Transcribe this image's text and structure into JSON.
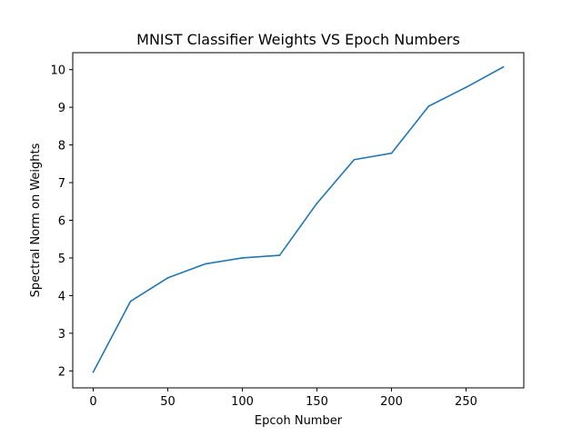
{
  "chart_data": {
    "type": "line",
    "title": "MNIST Classifier Weights VS Epoch Numbers",
    "xlabel": "Epcoh Number",
    "ylabel": "Spectral Norm on Weights",
    "xlim": [
      -13.75,
      288.75
    ],
    "ylim": [
      1.55,
      10.45
    ],
    "xticks": [
      0,
      50,
      100,
      150,
      200,
      250
    ],
    "yticks": [
      2,
      3,
      4,
      5,
      6,
      7,
      8,
      9,
      10
    ],
    "grid": false,
    "series": [
      {
        "color": "#1f77b4",
        "x": [
          0,
          25,
          50,
          75,
          100,
          125,
          150,
          175,
          200,
          225,
          250,
          275
        ],
        "y": [
          1.97,
          3.85,
          4.47,
          4.84,
          5.0,
          5.07,
          6.45,
          7.61,
          7.78,
          9.03,
          9.53,
          10.07
        ]
      }
    ]
  }
}
